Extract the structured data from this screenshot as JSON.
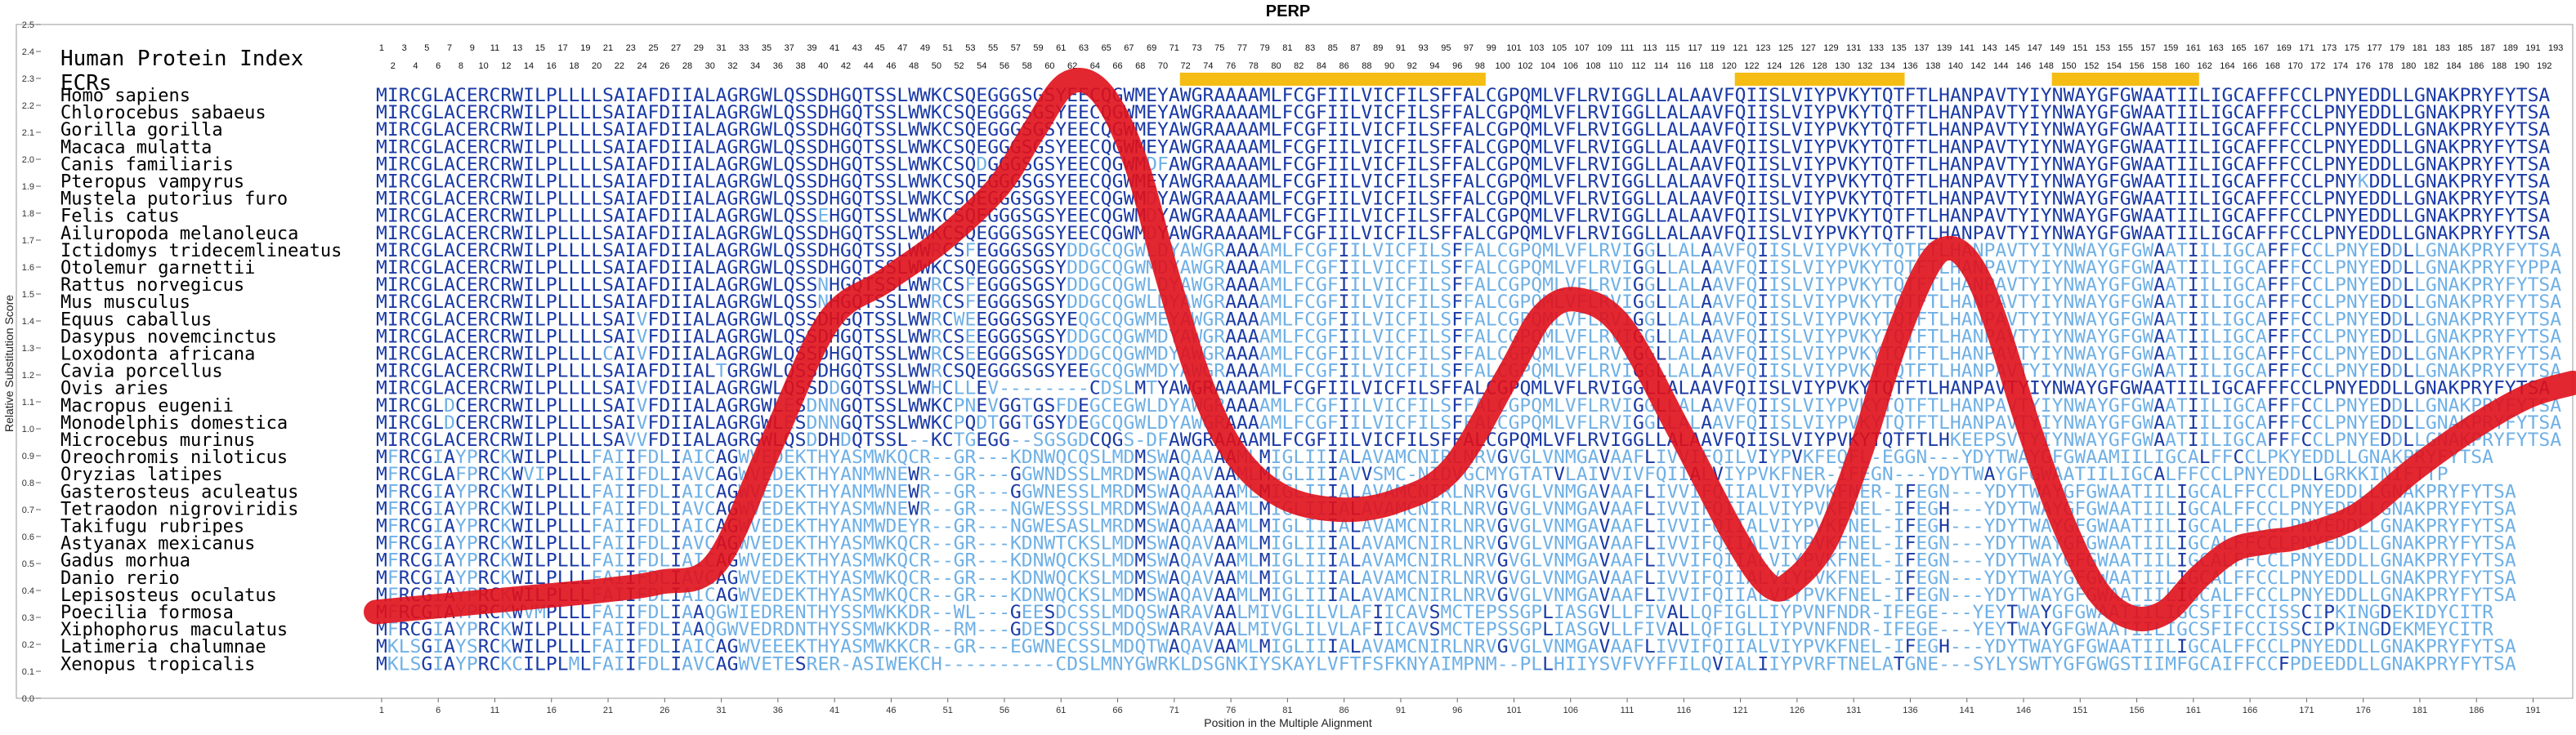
{
  "chart_data": {
    "type": "line",
    "title": "PERP",
    "xlabel": "Position in the Multiple Alignment",
    "ylabel": "Relative Substitution Score",
    "index_label": "Human Protein Index",
    "ecr_label": "ECRs",
    "ylim": [
      0,
      2.5
    ],
    "xlim": [
      0,
      194
    ],
    "y_ticks": [
      0,
      0.1,
      0.2,
      0.3,
      0.4,
      0.5,
      0.6,
      0.7,
      0.8,
      0.9,
      1.0,
      1.1,
      1.2,
      1.3,
      1.4,
      1.5,
      1.6,
      1.7,
      1.8,
      1.9,
      2.0,
      2.1,
      2.2,
      2.3,
      2.4,
      2.5
    ],
    "x_ticks": [
      1,
      6,
      11,
      16,
      21,
      26,
      31,
      36,
      41,
      46,
      51,
      56,
      61,
      66,
      71,
      76,
      81,
      86,
      91,
      96,
      101,
      106,
      111,
      116,
      121,
      126,
      131,
      136,
      141,
      146,
      151,
      156,
      161,
      166,
      171,
      176,
      181,
      186,
      191
    ],
    "human_index_max": 193,
    "ecr_regions": [
      [
        72,
        98
      ],
      [
        121,
        135
      ],
      [
        149,
        161
      ]
    ],
    "colors": {
      "conserved": "#1a3aa6",
      "divergent": "#6fb0e6",
      "curve": "#e0101a",
      "ecr": "#f5bd13"
    },
    "curve": {
      "x": [
        0,
        5,
        10,
        15,
        20,
        25,
        30,
        35,
        40,
        45,
        50,
        55,
        58,
        61,
        64,
        67,
        70,
        73,
        76,
        80,
        85,
        90,
        95,
        100,
        103,
        106,
        110,
        115,
        120,
        123,
        125,
        128,
        131,
        134,
        137,
        139,
        141,
        143,
        146,
        149,
        152,
        155,
        158,
        161,
        164,
        167,
        170,
        175,
        180,
        185,
        190,
        194
      ],
      "y": [
        0.32,
        0.34,
        0.36,
        0.38,
        0.4,
        0.43,
        0.5,
        0.95,
        1.4,
        1.55,
        1.7,
        1.9,
        2.1,
        2.28,
        2.25,
        2.0,
        1.55,
        1.15,
        0.9,
        0.75,
        0.7,
        0.73,
        0.85,
        1.2,
        1.42,
        1.48,
        1.38,
        1.0,
        0.6,
        0.42,
        0.43,
        0.58,
        0.9,
        1.3,
        1.6,
        1.67,
        1.6,
        1.4,
        1.0,
        0.65,
        0.4,
        0.3,
        0.32,
        0.45,
        0.55,
        0.58,
        0.6,
        0.68,
        0.85,
        1.0,
        1.12,
        1.17
      ]
    }
  },
  "species": [
    "Homo sapiens",
    "Chlorocebus sabaeus",
    "Gorilla gorilla",
    "Macaca mulatta",
    "Canis familiaris",
    "Pteropus vampyrus",
    "Mustela putorius furo",
    "Felis catus",
    "Ailuropoda melanoleuca",
    "Ictidomys tridecemlineatus",
    "Otolemur garnettii",
    "Rattus norvegicus",
    "Mus musculus",
    "Equus caballus",
    "Dasypus novemcinctus",
    "Loxodonta africana",
    "Cavia porcellus",
    "Ovis aries",
    "Macropus eugenii",
    "Monodelphis domestica",
    "Microcebus murinus",
    "Oreochromis niloticus",
    "Oryzias latipes",
    "Gasterosteus aculeatus",
    "Tetraodon nigroviridis",
    "Takifugu rubripes",
    "Astyanax mexicanus",
    "Gadus morhua",
    "Danio rerio",
    "Lepisosteus oculatus",
    "Poecilia formosa",
    "Xiphophorus maculatus",
    "Latimeria chalumnae",
    "Xenopus tropicalis"
  ],
  "sequences": [
    "MIRCGLACERCRWILPLLLLSAIAFDIIALAGRGWLQSSDHGQTSSLWWKCSQEGGGSGSYEECQGWMEYAWGRAAAAMLFCGFIILVICFILSFFALCGPQMLVFLRVIGGLLALAAVFQIISLVIYPVKYTQTFTLHANPAVTYIYNWAYGFGWAATIILIGCAFFFCCLPNYEDDLLGNAKPRYFYTSA",
    "MIRCGLACERCRWILPLLLLSAIAFDIIALAGRGWLQSSDHGQTSSLWWKCSQEGGGSGSYEECQGWMEYAWGRAAAAMLFCGFIILVICFILSFFALCGPQMLVFLRVIGGLLALAAVFQIISLVIYPVKYTQTFTLHANPAVTYIYNWAYGFGWAATIILIGCAFFFCCLPNYEDDLLGNAKPRYFYTSA",
    "MIRCGLACERCRWILPLLLLSAIAFDIIALAGRGWLQSSDHGQTSSLWWKCSQEGGGSGSYEECQGWMEYAWGRAAAAMLFCGFIILVICFILSFFALCGPQMLVFLRVIGGLLALAAVFQIISLVIYPVKYTQTFTLHANPAVTYIYNWAYGFGWAATIILIGCAFFFCCLPNYEDDLLGNAKPRYFYTSA",
    "MIRCGLACERCRWILPLLLLSAIAFDIIALAGRGWLQSSDHGQTSSLWWKCSQEGGGSGSYEECQGWMEYAWGRAAAAMLFCGFIILVICFILSFFALCGPQMLVFLRVIGGLLALAAVFQIISLVIYPVKYTQTFTLHANPAVTYIYNWAYGFGWAATIILIGCAFFFCCLPNYEDDLLGNAKPRYFYTSA",
    "MIRCGLACERCRWILPLLLLSAIAFDIIALAGRGWLQSSDHGQTSSLWWKCSQDGGGSGSYEECQGWMDFAWGRAAAAMLFCGFIILVICFILSFFALCGPQMLVFLRVIGGLLALAAVFQIISLVIYPVKYTQTFTLHANPAVTYIYNWAYGFGWAATIILIGCAFFFCCLPNYEDDLLGNAKPRYFYTSA",
    "MIRCGLACERCRWILPLLLLSAIAFDIIALAGRGWLQSSDHGQTSSLWWKCSQEGGGSGSYEECQGWMEYAWGRAAAAMLFCGFIILVICFILSFFALCGPQMLVFLRVIGGLLALAAVFQIISLVIYPVKYTQTFTLHANPAVTYIYNWAYGFGWAATIILIGCAFFFCCLPNYKDDLLGNAKPRYFYTSA",
    "MIRCGLACERCRWILPLLLLSAIAFDIIALAGRGWLQSSDHGQTSSLWWKCSQEGGGSGSYEECQGWMDYAWGRAAAAMLFCGFIILVICFILSFFALCGPQMLVFLRVIGGLLALAAVFQIISLVIYPVKYTQTFTLHANPAVTYIYNWAYGFGWAATIILIGCAFFFCCLPNYEDDLLGNAKPRYFYTSA",
    "MIRCGLACERCRWILPLLLLSAIAFDIIALAGRGWLQSSEHGQTSSLWWKCSQEGGGSGSYEECQGWMDYAWGRAAAAMLFCGFIILVICFILSFFALCGPQMLVFLRVIGGLLALAAVFQIISLVIYPVKYTQTFTLHANPAVTYIYNWAYGFGWAATIILIGCAFFFCCLPNYEDDLLGNAKPRYFYTSA",
    "MIRCGLACERCRWILPLLLLSAIAFDIIALAGRGWLQSSDHGQTSSLWWKCSQEGGGSGSYEECQGWMDYAWGRAAAAMLFCGFIILVICFILSFFALCGPQMLVFLRVIGGLLALAAVFQIISLVIYPVKYTQTFTLHANPAVTYIYNWAYGFGWAATIILIGCAFFFCCLPNYEDDLLGNAKPRYFYTSA",
    "MIRCGLACERCRWILPLLLLSAIAFDIIALAGRGWLQSSDHGQTSSLWWRCSFEGGGSGSYDDGCQGWLDYAWGRAAAAMLFCGFIILVICFILSFFALCGPQMLVFLRVIGGLLALAAVFQIISLVIYPVKYTQTFTLHANPAVTYIYNWAYGFGWAATIILIGCAFFFCCLPNYEDDLLGNAKPRYFYTSA",
    "MIRCGLACERCRWILPLLLLSAIAFDIIALAGRGWLQSSDHGQTSSLWWKCSQEGGGSGSYDDGCQGWMDYAWGRAAAAMLFCGFIILVICFILSFFALCGPQMLVFLRVIGGLLALAAVFQIISLVIYPVKYTQTFTLHANPAVTYIYNWAYGFGWAATIILIGCAFFFCCLPNYEDDLLGNAKPRYFYPPA",
    "MIRCGLACERCRWILPLLLLSAIAFDIIALAGRGWLQSSNHGQTSSLWWRCSFEGGGSGSYDDGCQGWLDYAWGRAAAAMLFCGFIILVICFILSFFALCGPQMLVFLRVIGGLLALAAVFQIISLVIYPVKYTQTFTLHANPAVTYIYNWAYGFGWAATIILIGCAFFFCCLPNYEDDLLGNAKPRYFYTSA",
    "MIRCGLACERCRWILPLLLLSAIAFDIIALAGRGWLQSSNHGQTSSLWWRCSFEGGGSGSYDDGCQGWLDYAWGRAAAAMLFCGFIILVICFILSFFALCGPQMLVFLRVIGGLLALAAVFQIISLVIYPVKYTQTFTLHANPAVTYIYNWAYGFGWAATIILIGCAFFFCCLPNYEDDLLGNAKPRYFYTSA",
    "MIRCGLACERCRWILPLLLLSAIVFDIIALAGRGWLQSSDHGQTSSLWWRCWEEGGGSGSYEQGCQGWMEYAWGRAAAAMLFCGFIILVICFILSFFALCGPQMLVFLRVIGGLLALAAVFQIISLVIYPVKYTQTFTLHANPAVTYIYNWAYGFGWAATIILIGCAFFFCCLPNYEDDLLGNAKPRYFYTSA",
    "MIRCGLACERCRWILPLLLLSAIVFDIIALAGRGWLQSSDHGQTSSLWWRCSEEGGGSGSYDDGCQGWMDYAWGRAAAAMLFCGFIILVICFILSFFALCGPQMLVFLRVIGGLLALAAVFQIISLVIYPVKYTQTFTLHANPAVTYIYNWAYGFGWAATIILIGCAFFFCCLPNYEDDLLGNAKPRYFYTSA",
    "MIRCGLACERCRWILPLLLLCAIVFDIIALAGRGWLQSSDHGQTSSLWWRCSEEGGGSGSYDDGCQGWMDYAWGRAAAAMLFCGFIILVICFILSFFALCGPQMLVFLRVIGGLLALAAVFQIISLVIYPVKYTQTFTLHANPAVTYIYNWAYGFGWAATIILIGCAFFFCCLPNYEDDLLGNAKPRYFYTSA",
    "MIRCGLACERCRWILPLLLLSAIAFDIIALTGRGWLQSSDHGQTSSLWWRCSQEGGGSGSYEEGCQGWMDYAWGRAAAAMLFCGFIILVICFILSFFALCGPQMLVFLRVIGGLLALAAVFQIISLVIYPVKYTQTFTLHANPAVTYIYNWAYGFGWAATIILIGCAFFFCCLPNYEDDLLGNAKPRYFYTSA",
    "MIRCGLACERCRWILPLLLLSAIVFDIIALAGRGWLQSSDDGQTSSLWWHCLLEV--------CDSLMTYAWGRAAAAMLFCGFIILVICFILSFFALCGPQMLVFLRVIGGLLALAAVFQIISLVIYPVKYTQTFTLHANPAVTYIYNWAYGFGWAATIILIGCAFFFCCLPNYEDDLLGNAKPRYFYTSA",
    "MIRCGLDCERCRWILPLLLLSAIVFDIIALAGRGWLESDNNGQTSSLWWKCPNEVGGTGSFDEGCEGWLDYAWGRAAAAMLFCGFIILVICFILSFFALCGPQMLVFLRVIGGLLALAAVFQIISLVIYPVKYTQTFTLHANPAVTYIYNWAYGFGWAATIILIGCAFFFCCLPNYEDDLLGNAKPRYFYTSA",
    "MIRCGLDCERCRWILPLLLLSAIVFDIIALAGRGWLESDNNGQTSSLWWKCPQDTGGTGSYDEGCQGWLDYAWGRAAAAMLFCGFIILVICFILSFFALCGPQMLVFLRVIGGLLALAAVFQIISLVIYPVKYTQTFTLHANPAVTYIYNWAYGFGWAATIILIGCAFFFCCLPNYEDDLLGNAKPRYFYTSA",
    "MIRCGLACERCRWILPLLLLSAVVFDIIALAGRGWLQSDDHDQTSSL--KCTGEGG--SGSGDCQGS-DFAWGRAAAAMLFCGFIILVICFILSFFALCGPQMLVFLRVIGGLLALAAVFQIISLVIYPVKYTQTFTLHKEEPSVTYIYNWAYGFGWAATIILIGCAFFFCCLPNYEDDLLGNAKPRYFYTSA",
    "MFRCGIAYPRCKWILPLLLFAIIFDLIAICAGWVEDEKTHYASMWKQCR--GR---KDNWQCQSLMDMSWAQAAAAMLMIGLIIIALAVAMCNIRLNRVGVGLVNMGAVAAFLIVVIFQILVIYPVKFEQFL-EGGN---YDYTWAYGFGWAAMIILIGCALFFCCLPKYEDDLLGNAKPRYFYTSA",
    "MFRCGLAFPRCKWVIPLLLFAIIFDLIAVCAGWVEDEKTHYANMWNEWR--GR---GGWNDSSLMRDMSWAQAVAAMLMIGLIIIAVVSMC-NIDVGCMYGTATVLAIVVIVFQIIALVIYPVKFNER-IFEGN---YDYTWAYGFGWAATIILIGCALFFCCLPNYEDDLLGRKKINIFTTP",
    "MFRCGIAYPRCKWILPLLLFAIIFDLIAICAGWVEDEKTHYANMWNEWR--GR---GGWNESSLMRDMSWAQAAAAMLMIGLIIIALAVAMCNIRLNRVGVGLVNMGAVAAFLIVVIFQIIALVIYPVKFNER-IFEGN---YDYTWAYGFGWAATIILIGCALFFCCLPNYEDDLLGNAKPRYFYTSA",
    "MFRCGIAYPRCKWILPLLLFAIIFDLIAVCAGWVEDEKTHYASMWNEWR--GR---NGWESSSLMRDMSWAQAAAAMLMIGLIIIALAVAMCNIRLNRVGVGLVNMGAVAAFLIVVIFQIIALVIYPVKFNEL-IFEGH---YDYTWAYGFGWAATIILIGCALFFCCLPNYEDDLLGNAKPRYFYTSA",
    "MFRCGIAYPRCKWILPLLLFAIIFDLIAICAGWVEDEKTHYANMWDEYR--GR---NGWESASLMRDMSWAQAAAAMLMIGLIIIALAVAMCNIRLNRVGVGLVNMGAVAAFLIVVIFQIIALVIYPVKFNEL-IFEGH---YDYTWAYGFGWAATIILIGCALFFCCLPNYEDDLLGNAKPRYFYTSA",
    "MFRCGIAYPRCKWILPLLLFAIIFDLIAVCAGWVEDEKTHYASMWKQCR--GR---KDNWTCKSLMDMSWAQAVAAMLMIGLIIIALAVAMCNIRLNRVGVGLVNMGAVAAFLIVVIFQIIALVIYPVKFNEL-IFEGN---YDYTWAYGFGWAATIILIGCALFFCCLPNYEDDLLGNAKPRYFYTSA",
    "MFRCGIAYPRCKWILPLLLFAIIFDLIAICAGWVEDEKTHYASMWKQCR--GR---KDNWQCKSLMDMSWAQAVAAMLMIGLIIIALAVAMCNIRLNRVGVGLVNMGAVAAFLIVVIFQIIALVIYPVKFNEL-IFEGN---YDYTWAYGFGWAATIILIGCALFFCCLPNYEDDLLGNAKPRYFYTSA",
    "MFRCGIAYPRCKWILPLLLFAIIFDLIAVCAGWVEDEKTHYASMWKQCR--GR---KDNWQCKSLMDMSWAQAVAAMLMIGLIIIALAVAMCNIRLNRVGVGLVNMGAVAAFLIVVIFQIIALVIYPVKFNEL-IFEGN---YDYTWAYGFGWAATIILIGCALFFCCLPNYEDDLLGNAKPRYFYTSA",
    "MFRCGIAYPRCKWILPLLLFAIIFDLIAICAGWVEDEKTHYASMWKQCR--GR---KDNWQCKSLMDMSWAQAVAAMLMIGLIIIALAVAMCNIRLNRVGVGLVNMGAVAAFLIVVIFQIIALVIYPVKFNEL-IFEGN---YDYTWAYGFGWAATIILIGCALFFCCLPNYEDDLLGNAKPRYFYTSA",
    "MFRCGIAYPRCKWVMPLLLFAIIFDLIAAQGWIEDRENTHYSSMWKKDR--WL---GEESDCSSLMDQSWARAVAALMIVGLILVLAFIICAVSMCTEPSSGPLIASGVLLFIVALLQFIGLLIYPVNFNDR-IFEGE---YEYTWAYGFGWAATIILIGCSFIFCCISSCIPKINGDEKIDYCITR",
    "MFRCGIAYPRCKWILPLLLFAIIFDLIAAQGWVEDRDNTHYSSMWKKDR--RM---GDESDCSSLMDQSWARAVAALMIVGLILVLAFIICAVSMCTEPSSGPLIASGVLLFIVALLQFIGLLIYPVNFNDR-IFEGE---YEYTWAYGFGWAATIILIGCSFIFCCISSCIPKINGDEKMEYCITR",
    "MKLSGIAYSRCKWILPLLLFAIIFDLIAICAGWVEEEKTHYASMWKKCR--GR---EGWNECSSLMDQTWAQAVAAMLMIGLIIIALAVAMCNIRLNRVGVGLVNMGAVAAFLIVVIFQIIALVIYPVKFNEL-IFEGH---YDYTWAYGFGWAATIILIGCALFFCCLPNYEDDLLGNAKPRYFYTSA",
    "MKLSGIAYPRCKCILPLMLFAIIFDLIAVCAGWVETESRER-ASIWEKCH----------CDSLMNYGWRKLDSGNKIYSKAYLVFTFSFKNYAIMPNM--PLLHIIYSVFVYFFILQVIALIIYPVRFTNELATGNE---SYLYSWTYGFGWGSTIIMFGCAIFFCCFPDEEDDLLGNAKPRYFYTSA"
  ]
}
